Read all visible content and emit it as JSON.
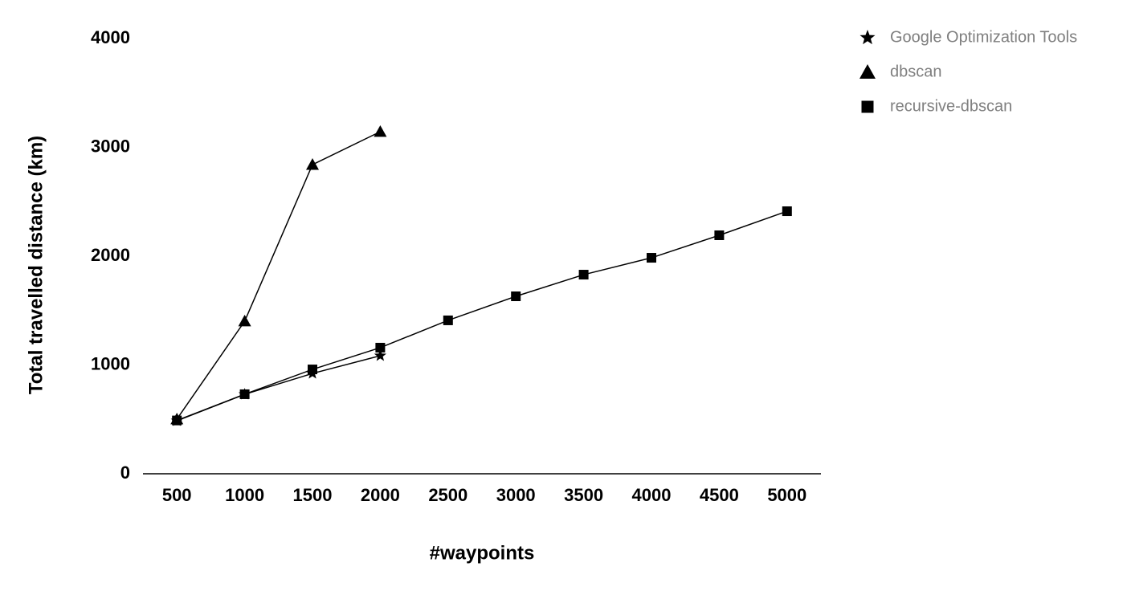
{
  "chart_data": {
    "type": "line",
    "x_label": "#waypoints",
    "y_label": "Total travelled distance (km)",
    "categories": [
      "500",
      "1000",
      "1500",
      "2000",
      "2500",
      "3000",
      "3500",
      "4000",
      "4500",
      "5000"
    ],
    "series": [
      {
        "name": "Google Optimization Tools",
        "color": "#000000",
        "marker": "star",
        "values": [
          487,
          730,
          922,
          1085,
          null,
          null,
          null,
          null,
          null,
          null
        ]
      },
      {
        "name": "dbscan",
        "color": "#000000",
        "marker": "triangle",
        "values": [
          502,
          1402,
          2841,
          3144,
          null,
          null,
          null,
          null,
          null,
          null
        ]
      },
      {
        "name": "recursive-dbscan",
        "color": "#000000",
        "marker": "square",
        "values": [
          490,
          731,
          959,
          1159,
          1410,
          1631,
          1830,
          1985,
          2192,
          2413
        ]
      }
    ],
    "ylim": [
      0,
      4000
    ],
    "yticks": [
      0,
      1000,
      2000,
      3000,
      4000
    ],
    "grid": false,
    "legend": "top-right"
  }
}
